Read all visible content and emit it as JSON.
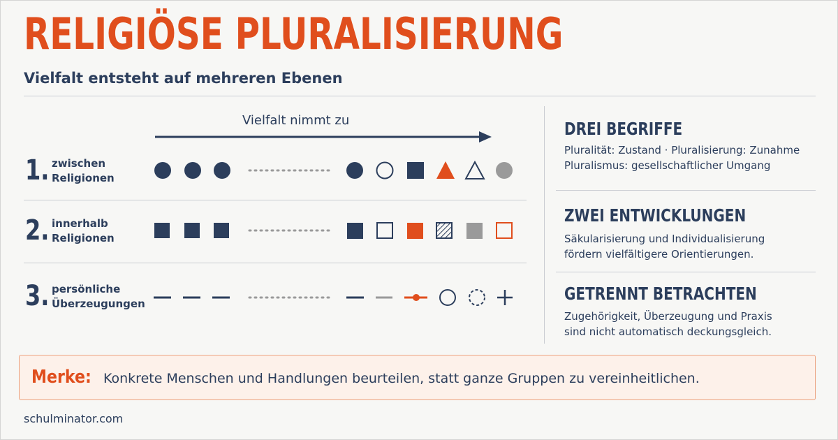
{
  "header": {
    "title": "RELIGIÖSE PLURALISIERUNG",
    "subtitle": "Vielfalt entsteht auf mehreren Ebenen"
  },
  "axis": {
    "label": "Vielfalt nimmt zu"
  },
  "rows": [
    {
      "number": "1.",
      "label_line1": "zwischen",
      "label_line2": "Religionen"
    },
    {
      "number": "2.",
      "label_line1": "innerhalb",
      "label_line2": "Religionen"
    },
    {
      "number": "3.",
      "label_line1": "persönliche",
      "label_line2": "Überzeugungen"
    }
  ],
  "sections": [
    {
      "heading": "DREI BEGRIFFE",
      "line1": "Pluralität: Zustand · Pluralisierung: Zunahme",
      "line2": "Pluralismus: gesellschaftlicher Umgang"
    },
    {
      "heading": "ZWEI ENTWICKLUNGEN",
      "line1": "Säkularisierung und Individualisierung",
      "line2": "fördern vielfältigere Orientierungen."
    },
    {
      "heading": "GETRENNT BETRACHTEN",
      "line1": "Zugehörigkeit, Überzeugung und Praxis",
      "line2": "sind nicht automatisch deckungsgleich."
    }
  ],
  "note": {
    "label": "Merke:",
    "text": "Konkrete Menschen und Handlungen beurteilen, statt ganze Gruppen zu vereinheitlichen."
  },
  "footer": {
    "source": "schulminator.com"
  },
  "colors": {
    "navy": "#2c3e5c",
    "orange": "#e04e1d",
    "gray": "#9a9a9a"
  }
}
